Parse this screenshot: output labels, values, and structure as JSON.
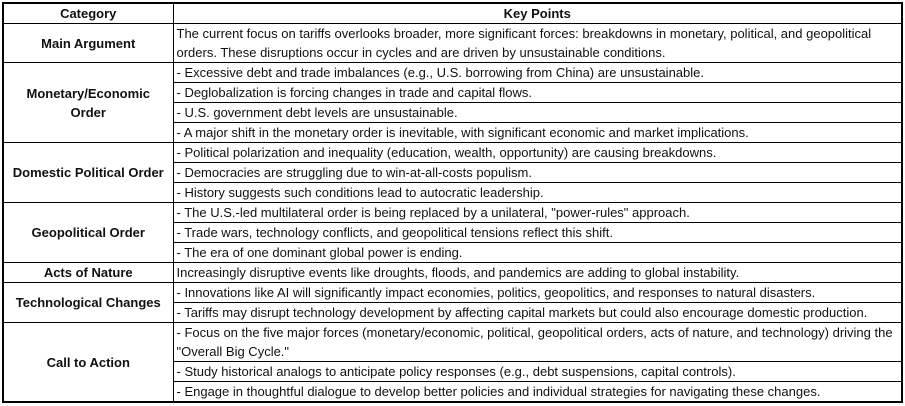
{
  "table": {
    "headers": [
      "Category",
      "Key Points"
    ],
    "rows": [
      {
        "category": "Main Argument",
        "points": [
          "The current focus on tariffs overlooks broader, more significant forces: breakdowns in monetary, political, and geopolitical orders. These disruptions occur in cycles and are driven by unsustainable conditions."
        ]
      },
      {
        "category": "Monetary/Economic Order",
        "points": [
          "- Excessive debt and trade imbalances (e.g., U.S. borrowing from China) are unsustainable.",
          "- Deglobalization is forcing changes in trade and capital flows.",
          "- U.S. government debt levels are unsustainable.",
          "- A major shift in the monetary order is inevitable, with significant economic and market implications."
        ]
      },
      {
        "category": "Domestic Political Order",
        "points": [
          "- Political polarization and inequality (education, wealth, opportunity) are causing breakdowns.",
          "- Democracies are struggling due to win-at-all-costs populism.",
          "- History suggests such conditions lead to autocratic leadership."
        ]
      },
      {
        "category": "Geopolitical Order",
        "points": [
          "- The U.S.-led multilateral order is being replaced by a unilateral, \"power-rules\" approach.",
          "- Trade wars, technology conflicts, and geopolitical tensions reflect this shift.",
          "- The era of one dominant global power is ending."
        ]
      },
      {
        "category": "Acts of Nature",
        "points": [
          "Increasingly disruptive events like droughts, floods, and pandemics are adding to global instability."
        ]
      },
      {
        "category": "Technological Changes",
        "points": [
          "- Innovations like AI will significantly impact economies, politics, geopolitics, and responses to natural disasters.",
          "- Tariffs may disrupt technology development by affecting capital markets but could also encourage domestic production."
        ]
      },
      {
        "category": "Call to Action",
        "points": [
          "- Focus on the five major forces (monetary/economic, political, geopolitical orders, acts of nature, and technology) driving the \"Overall Big Cycle.\"",
          "- Study historical analogs to anticipate policy responses (e.g., debt suspensions, capital controls).",
          "- Engage in thoughtful dialogue to develop better policies and individual strategies for navigating these changes."
        ]
      }
    ]
  }
}
